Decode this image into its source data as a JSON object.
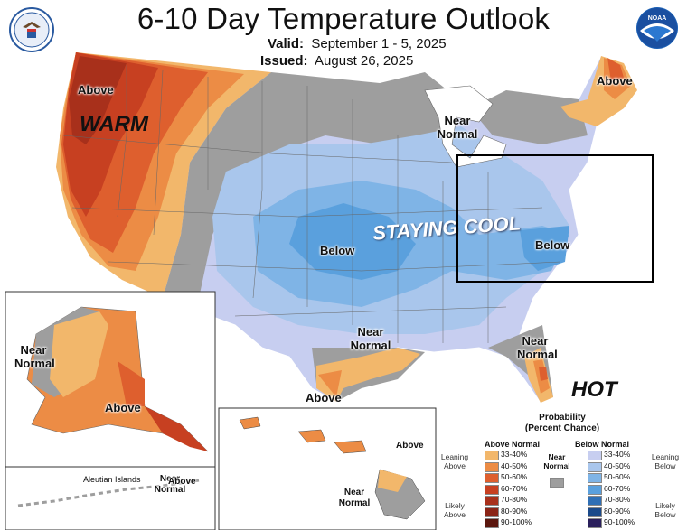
{
  "header": {
    "title": "6-10 Day Temperature Outlook",
    "valid_label": "Valid:",
    "valid_value": "September 1 - 5, 2025",
    "issued_label": "Issued:",
    "issued_value": "August 26, 2025"
  },
  "colors": {
    "gray": "#9e9e9e",
    "above_33_40": "#f2b76b",
    "above_40_50": "#ec8c45",
    "above_50_60": "#de5f2e",
    "above_60_70": "#c74021",
    "above_70_80": "#a8301b",
    "above_80_90": "#8a2416",
    "above_90_100": "#5a160d",
    "below_33_40": "#c7cef0",
    "below_40_50": "#a9c6ec",
    "below_50_60": "#7fb4e6",
    "below_60_70": "#5aa0dd",
    "below_70_80": "#2f6fb5",
    "below_80_90": "#1b4a8a",
    "below_90_100": "#2a1f5c"
  },
  "map_labels": {
    "above_nw": "Above",
    "warm": "WARM",
    "near_normal_mi": "Near Normal",
    "above_ne": "Above",
    "below_central": "Below",
    "staying_cool": "STAYING COOL",
    "below_east": "Below",
    "near_normal_tx": "Near Normal",
    "above_tx": "Above",
    "near_normal_fl": "Near Normal",
    "hot": "HOT"
  },
  "alaska_labels": {
    "near_normal": "Near Normal",
    "above": "Above"
  },
  "aleutian_labels": {
    "islands": "Aleutian Islands",
    "near_normal": "Near Normal",
    "above": "Above"
  },
  "hawaii_labels": {
    "above": "Above",
    "near_normal": "Near Normal"
  },
  "legend": {
    "title": "Probability",
    "subtitle": "(Percent Chance)",
    "above_header": "Above Normal",
    "below_header": "Below Normal",
    "near_normal": "Near Normal",
    "leaning_above": "Leaning Above",
    "likely_above": "Likely Above",
    "leaning_below": "Leaning Below",
    "likely_below": "Likely Below",
    "ranges": [
      "33-40%",
      "40-50%",
      "50-60%",
      "60-70%",
      "70-80%",
      "80-90%",
      "90-100%"
    ]
  }
}
